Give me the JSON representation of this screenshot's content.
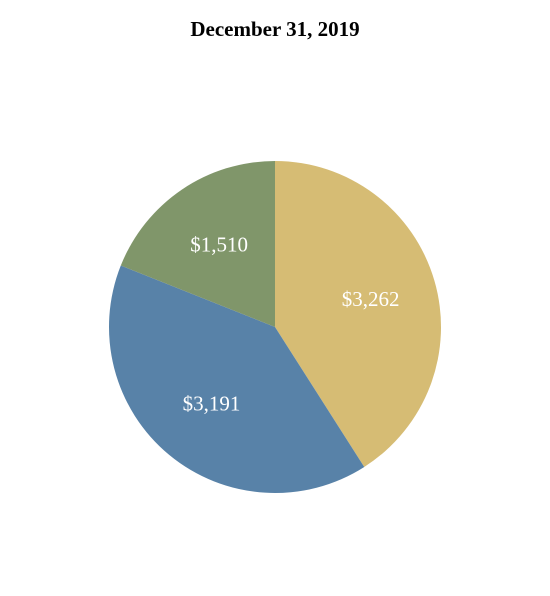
{
  "chart_data": {
    "type": "pie",
    "title": "December 31, 2019",
    "slices": [
      {
        "label": "$3,262",
        "value": 3262,
        "color": "#d6bc74"
      },
      {
        "label": "$3,191",
        "value": 3191,
        "color": "#5882a8"
      },
      {
        "label": "$1,510",
        "value": 1510,
        "color": "#80966a"
      }
    ],
    "start_angle": "top",
    "direction": "clockwise",
    "legend": "none"
  }
}
